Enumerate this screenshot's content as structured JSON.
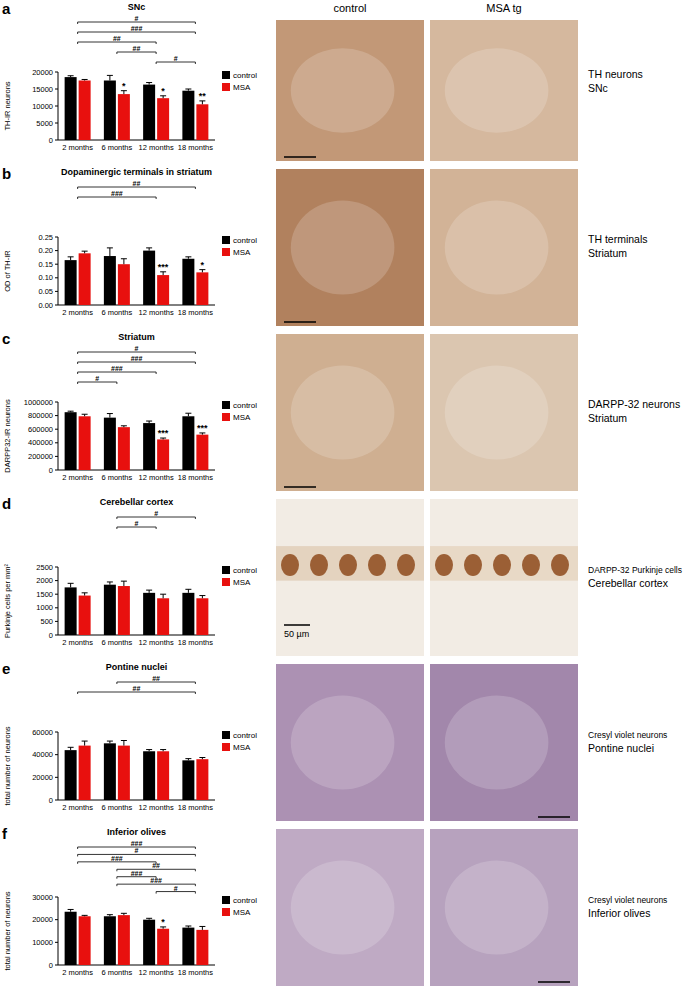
{
  "chart_data": [
    {
      "type": "bar",
      "title": "SNc",
      "y_label": "TH-IR neurons",
      "categories": [
        "2 months",
        "6 months",
        "12 months",
        "18 months"
      ],
      "series": [
        {
          "name": "control",
          "color": "#000000",
          "values": [
            18500,
            17500,
            16300,
            14500
          ],
          "errors": [
            400,
            1500,
            600,
            500
          ]
        },
        {
          "name": "MSA",
          "color": "#e8100e",
          "values": [
            17500,
            13500,
            12300,
            10500
          ],
          "errors": [
            300,
            1000,
            700,
            1000
          ]
        }
      ],
      "ylim": [
        0,
        20000
      ],
      "yticks": [
        0,
        5000,
        10000,
        15000,
        20000
      ],
      "grid": false,
      "legend": "right",
      "annotations": [
        {
          "category": 1,
          "series": 1,
          "label": "*"
        },
        {
          "category": 2,
          "series": 1,
          "label": "*"
        },
        {
          "category": 3,
          "series": 1,
          "label": "**"
        }
      ],
      "comparisons": [
        {
          "from": 0,
          "to": 3,
          "label": "#"
        },
        {
          "from": 0,
          "to": 3,
          "label": "###"
        },
        {
          "from": 0,
          "to": 2,
          "label": "##"
        },
        {
          "from": 1,
          "to": 2,
          "label": "##"
        },
        {
          "from": 2,
          "to": 3,
          "label": "#"
        }
      ]
    },
    {
      "type": "bar",
      "title": "Dopaminergic terminals in striatum",
      "y_label": "OD of TH-IR",
      "categories": [
        "2 months",
        "6 months",
        "12 months",
        "18 months"
      ],
      "series": [
        {
          "name": "control",
          "color": "#000000",
          "values": [
            0.165,
            0.18,
            0.2,
            0.17
          ],
          "errors": [
            0.012,
            0.03,
            0.01,
            0.007
          ]
        },
        {
          "name": "MSA",
          "color": "#e8100e",
          "values": [
            0.19,
            0.15,
            0.11,
            0.12
          ],
          "errors": [
            0.008,
            0.02,
            0.012,
            0.01
          ]
        }
      ],
      "ylim": [
        0,
        0.25
      ],
      "yticks": [
        {
          "value": 0,
          "label": "0.00"
        },
        0.05,
        {
          "value": 0.1,
          "label": "0.10"
        },
        0.15,
        {
          "value": 0.2,
          "label": "0.20"
        },
        0.25
      ],
      "grid": false,
      "legend": "right",
      "annotations": [
        {
          "category": 2,
          "series": 1,
          "label": "***"
        },
        {
          "category": 3,
          "series": 1,
          "label": "*"
        }
      ],
      "comparisons": [
        {
          "from": 0,
          "to": 3,
          "label": "##"
        },
        {
          "from": 0,
          "to": 2,
          "label": "###"
        }
      ]
    },
    {
      "type": "bar",
      "title": "Striatum",
      "y_label": "DARPP32-IR neurons",
      "categories": [
        "2 months",
        "6 months",
        "12 months",
        "18 months"
      ],
      "series": [
        {
          "name": "control",
          "color": "#000000",
          "values": [
            850000,
            770000,
            690000,
            790000
          ],
          "errors": [
            15000,
            60000,
            30000,
            45000
          ]
        },
        {
          "name": "MSA",
          "color": "#e8100e",
          "values": [
            790000,
            630000,
            450000,
            520000
          ],
          "errors": [
            30000,
            20000,
            20000,
            25000
          ]
        }
      ],
      "ylim": [
        0,
        1000000
      ],
      "yticks": [
        0,
        200000,
        400000,
        600000,
        800000,
        1000000
      ],
      "grid": false,
      "legend": "right",
      "annotations": [
        {
          "category": 2,
          "series": 1,
          "label": "***"
        },
        {
          "category": 3,
          "series": 1,
          "label": "***"
        }
      ],
      "comparisons": [
        {
          "from": 0,
          "to": 3,
          "label": "#"
        },
        {
          "from": 0,
          "to": 3,
          "label": "###"
        },
        {
          "from": 0,
          "to": 2,
          "label": "###"
        },
        {
          "from": 0,
          "to": 1,
          "label": "#"
        }
      ]
    },
    {
      "type": "bar",
      "title": "Cerebellar cortex",
      "y_label": "Purkinje cells per mm²",
      "categories": [
        "2 months",
        "6 months",
        "12 months",
        "18 months"
      ],
      "series": [
        {
          "name": "control",
          "color": "#000000",
          "values": [
            1750,
            1850,
            1550,
            1550
          ],
          "errors": [
            150,
            100,
            100,
            130
          ]
        },
        {
          "name": "MSA",
          "color": "#e8100e",
          "values": [
            1450,
            1800,
            1350,
            1350
          ],
          "errors": [
            100,
            180,
            150,
            100
          ]
        }
      ],
      "ylim": [
        0,
        2500
      ],
      "yticks": [
        0,
        500,
        1000,
        1500,
        2000,
        2500
      ],
      "grid": false,
      "legend": "right",
      "annotations": [],
      "comparisons": [
        {
          "from": 1,
          "to": 3,
          "label": "#"
        },
        {
          "from": 1,
          "to": 2,
          "label": "#"
        }
      ]
    },
    {
      "type": "bar",
      "title": "Pontine nuclei",
      "y_label": "total number of neurons",
      "categories": [
        "2 months",
        "6 months",
        "12 months",
        "18 months"
      ],
      "series": [
        {
          "name": "control",
          "color": "#000000",
          "values": [
            44000,
            50000,
            43000,
            35000
          ],
          "errors": [
            2500,
            2000,
            1500,
            1500
          ]
        },
        {
          "name": "MSA",
          "color": "#e8100e",
          "values": [
            48000,
            48000,
            43000,
            36000
          ],
          "errors": [
            4000,
            4500,
            1500,
            1500
          ]
        }
      ],
      "ylim": [
        0,
        60000
      ],
      "yticks": [
        0,
        20000,
        40000,
        60000
      ],
      "grid": false,
      "legend": "right",
      "annotations": [],
      "comparisons": [
        {
          "from": 1,
          "to": 3,
          "label": "##"
        },
        {
          "from": 0,
          "to": 3,
          "label": "##"
        }
      ]
    },
    {
      "type": "bar",
      "title": "Inferior olives",
      "y_label": "total number of neurons",
      "categories": [
        "2 months",
        "6 months",
        "12 months",
        "18 months"
      ],
      "series": [
        {
          "name": "control",
          "color": "#000000",
          "values": [
            23500,
            21500,
            20000,
            16500
          ],
          "errors": [
            1000,
            700,
            600,
            700
          ]
        },
        {
          "name": "MSA",
          "color": "#e8100e",
          "values": [
            21500,
            22000,
            16000,
            15500
          ],
          "errors": [
            400,
            800,
            800,
            1500
          ]
        }
      ],
      "ylim": [
        0,
        30000
      ],
      "yticks": [
        0,
        10000,
        20000,
        30000
      ],
      "grid": false,
      "legend": "right",
      "annotations": [
        {
          "category": 2,
          "series": 1,
          "label": "*"
        }
      ],
      "comparisons": [
        {
          "from": 0,
          "to": 3,
          "label": "###"
        },
        {
          "from": 0,
          "to": 3,
          "label": "#"
        },
        {
          "from": 0,
          "to": 2,
          "label": "###"
        },
        {
          "from": 1,
          "to": 3,
          "label": "##"
        },
        {
          "from": 1,
          "to": 2,
          "label": "###"
        },
        {
          "from": 1,
          "to": 3,
          "label": "###"
        },
        {
          "from": 2,
          "to": 3,
          "label": "#"
        }
      ]
    }
  ],
  "figure": {
    "columns": [
      "control",
      "MSA tg"
    ],
    "panels": [
      {
        "letter": "a",
        "image_label": [
          "TH neurons",
          "SNc"
        ]
      },
      {
        "letter": "b",
        "image_label": [
          "TH terminals",
          "Striatum"
        ]
      },
      {
        "letter": "c",
        "image_label": [
          "DARPP-32 neurons",
          "Striatum"
        ]
      },
      {
        "letter": "d",
        "image_label": [
          "DARPP-32 Purkinje cells",
          "Cerebellar cortex"
        ],
        "scale_label": "50 µm"
      },
      {
        "letter": "e",
        "image_label": [
          "Cresyl violet neurons",
          "Pontine nuclei"
        ]
      },
      {
        "letter": "f",
        "image_label": [
          "Cresyl violet neurons",
          "Inferior olives"
        ]
      }
    ]
  }
}
